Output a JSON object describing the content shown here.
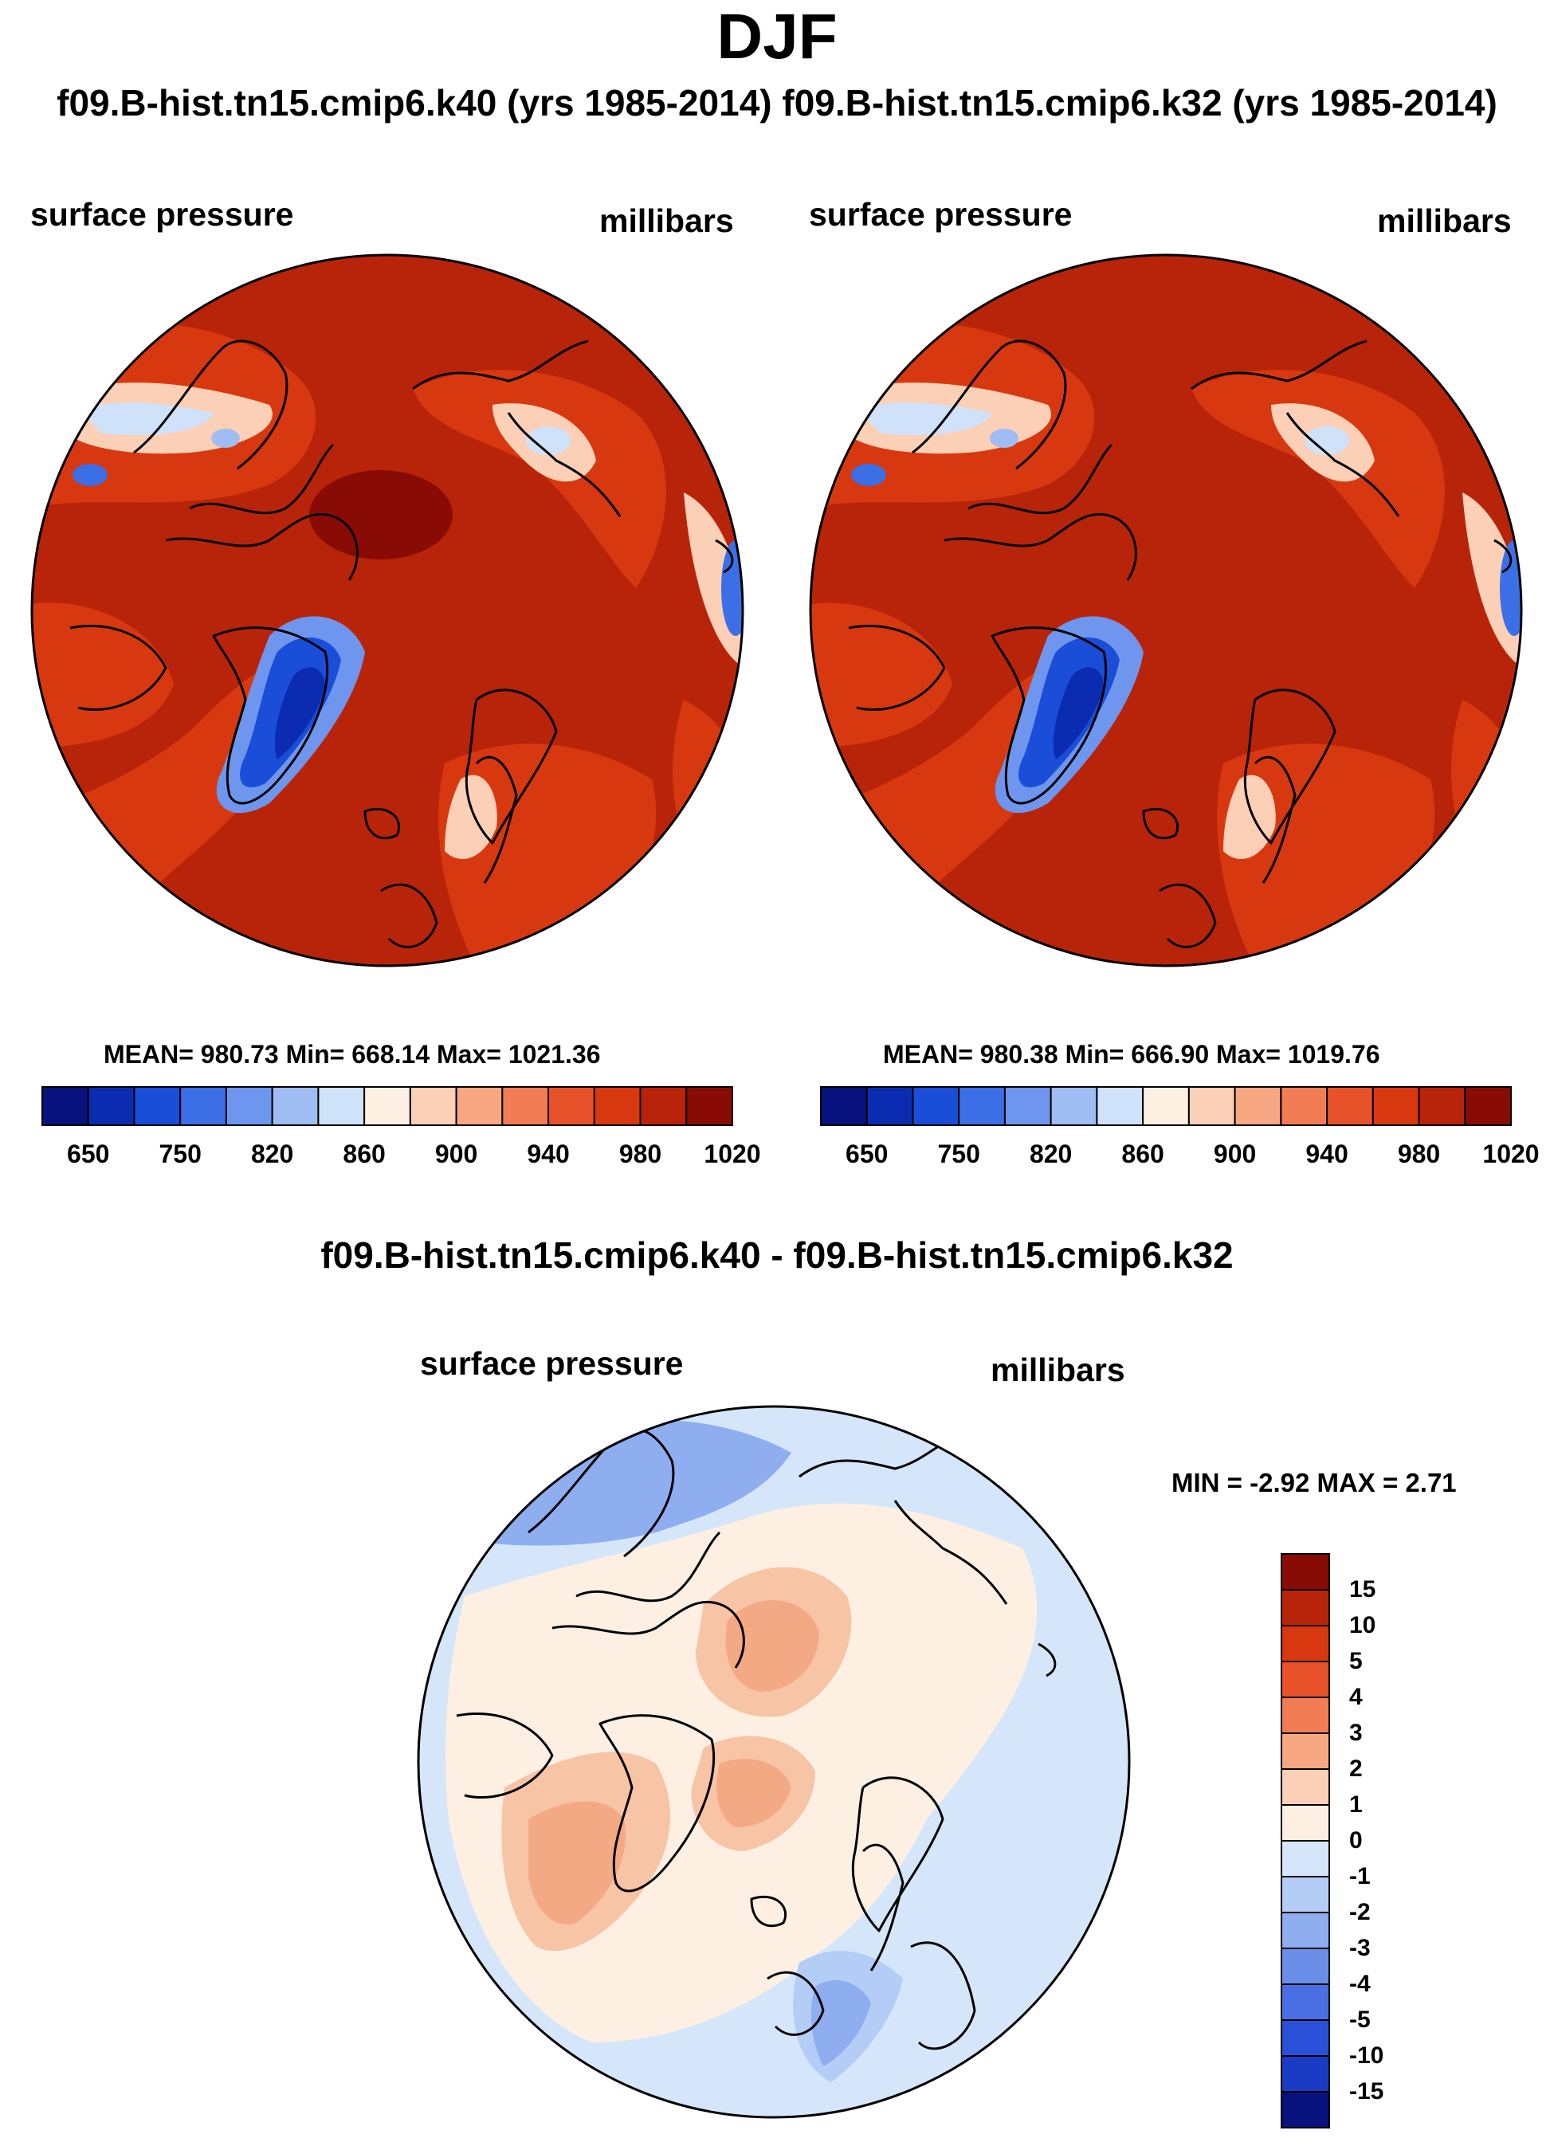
{
  "title": "DJF",
  "run_header": "f09.B-hist.tn15.cmip6.k40 (yrs 1985-2014) f09.B-hist.tn15.cmip6.k32 (yrs 1985-2014)",
  "panels": [
    {
      "variable": "surface pressure",
      "units": "millibars",
      "stats": "MEAN= 980.73  Min= 668.14  Max= 1021.36"
    },
    {
      "variable": "surface pressure",
      "units": "millibars",
      "stats": "MEAN= 980.38  Min= 666.90  Max= 1019.76"
    }
  ],
  "diff": {
    "title": "f09.B-hist.tn15.cmip6.k40 - f09.B-hist.tn15.cmip6.k32",
    "variable": "surface pressure",
    "units": "millibars",
    "minmax": "MIN =  -2.92 MAX =   2.71"
  },
  "chart_data": [
    {
      "type": "contour-map",
      "projection": "north polar stereographic",
      "title": "surface pressure (k40)",
      "units": "millibars",
      "mean": 980.73,
      "min": 668.14,
      "max": 1021.36,
      "colorbar_labels": [
        "650",
        "750",
        "820",
        "860",
        "900",
        "940",
        "980",
        "1020"
      ],
      "colorbar_colors": [
        "#08127e",
        "#0b2cb0",
        "#1a4ed8",
        "#3c6ee6",
        "#6f96ee",
        "#9fbdf3",
        "#cfe2fa",
        "#fdf0e3",
        "#fbd0b6",
        "#f7a883",
        "#f27d54",
        "#e8522a",
        "#d8380f",
        "#b82409",
        "#880c05"
      ]
    },
    {
      "type": "contour-map",
      "projection": "north polar stereographic",
      "title": "surface pressure (k32)",
      "units": "millibars",
      "mean": 980.38,
      "min": 666.9,
      "max": 1019.76,
      "colorbar_labels": [
        "650",
        "750",
        "820",
        "860",
        "900",
        "940",
        "980",
        "1020"
      ],
      "colorbar_colors": [
        "#08127e",
        "#0b2cb0",
        "#1a4ed8",
        "#3c6ee6",
        "#6f96ee",
        "#9fbdf3",
        "#cfe2fa",
        "#fdf0e3",
        "#fbd0b6",
        "#f7a883",
        "#f27d54",
        "#e8522a",
        "#d8380f",
        "#b82409",
        "#880c05"
      ]
    },
    {
      "type": "contour-map",
      "projection": "north polar stereographic",
      "title": "surface pressure difference (k40 - k32)",
      "units": "millibars",
      "min": -2.92,
      "max": 2.71,
      "colorbar_labels": [
        "15",
        "10",
        "5",
        "4",
        "3",
        "2",
        "1",
        "0",
        "-1",
        "-2",
        "-3",
        "-4",
        "-5",
        "-10",
        "-15"
      ],
      "colorbar_colors": [
        "#880c05",
        "#b82409",
        "#d8380f",
        "#e8522a",
        "#f27d54",
        "#f7a883",
        "#fbd0b6",
        "#fdf0e3",
        "#d6e6fa",
        "#b4cdf6",
        "#8faeef",
        "#6b8fe9",
        "#4a6fe2",
        "#2a4fd8",
        "#1a3bc4",
        "#08127e"
      ]
    }
  ]
}
